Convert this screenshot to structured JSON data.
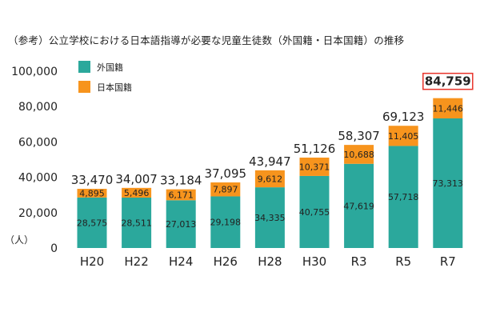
{
  "chart_data": {
    "type": "bar",
    "stacked": true,
    "title": "（参考）公立学校における日本語指導が必要な児童生徒数（外国籍・日本国籍）の推移",
    "ylabel": "（人）",
    "ylim": [
      0,
      100000
    ],
    "yticks": [
      "0",
      "20,000",
      "40,000",
      "60,000",
      "80,000",
      "100,000"
    ],
    "grid": false,
    "legend_position": "top-left",
    "categories": [
      "H20",
      "H22",
      "H24",
      "H26",
      "H28",
      "H30",
      "R3",
      "R5",
      "R7"
    ],
    "series": [
      {
        "name": "外国籍",
        "color": "#2ba89c",
        "values": [
          28575,
          28511,
          27013,
          29198,
          34335,
          40755,
          47619,
          57718,
          73313
        ],
        "labels": [
          "28,575",
          "28,511",
          "27,013",
          "29,198",
          "34,335",
          "40,755",
          "47,619",
          "57,718",
          "73,313"
        ]
      },
      {
        "name": "日本国籍",
        "color": "#f7941d",
        "values": [
          4895,
          5496,
          6171,
          7897,
          9612,
          10371,
          10688,
          11405,
          11446
        ],
        "labels": [
          "4,895",
          "5,496",
          "6,171",
          "7,897",
          "9,612",
          "10,371",
          "10,688",
          "11,405",
          "11,446"
        ]
      }
    ],
    "totals": [
      "33,470",
      "34,007",
      "33,184",
      "37,095",
      "43,947",
      "51,126",
      "58,307",
      "69,123",
      "84,759"
    ],
    "highlight_total_color": "#e8332b"
  }
}
